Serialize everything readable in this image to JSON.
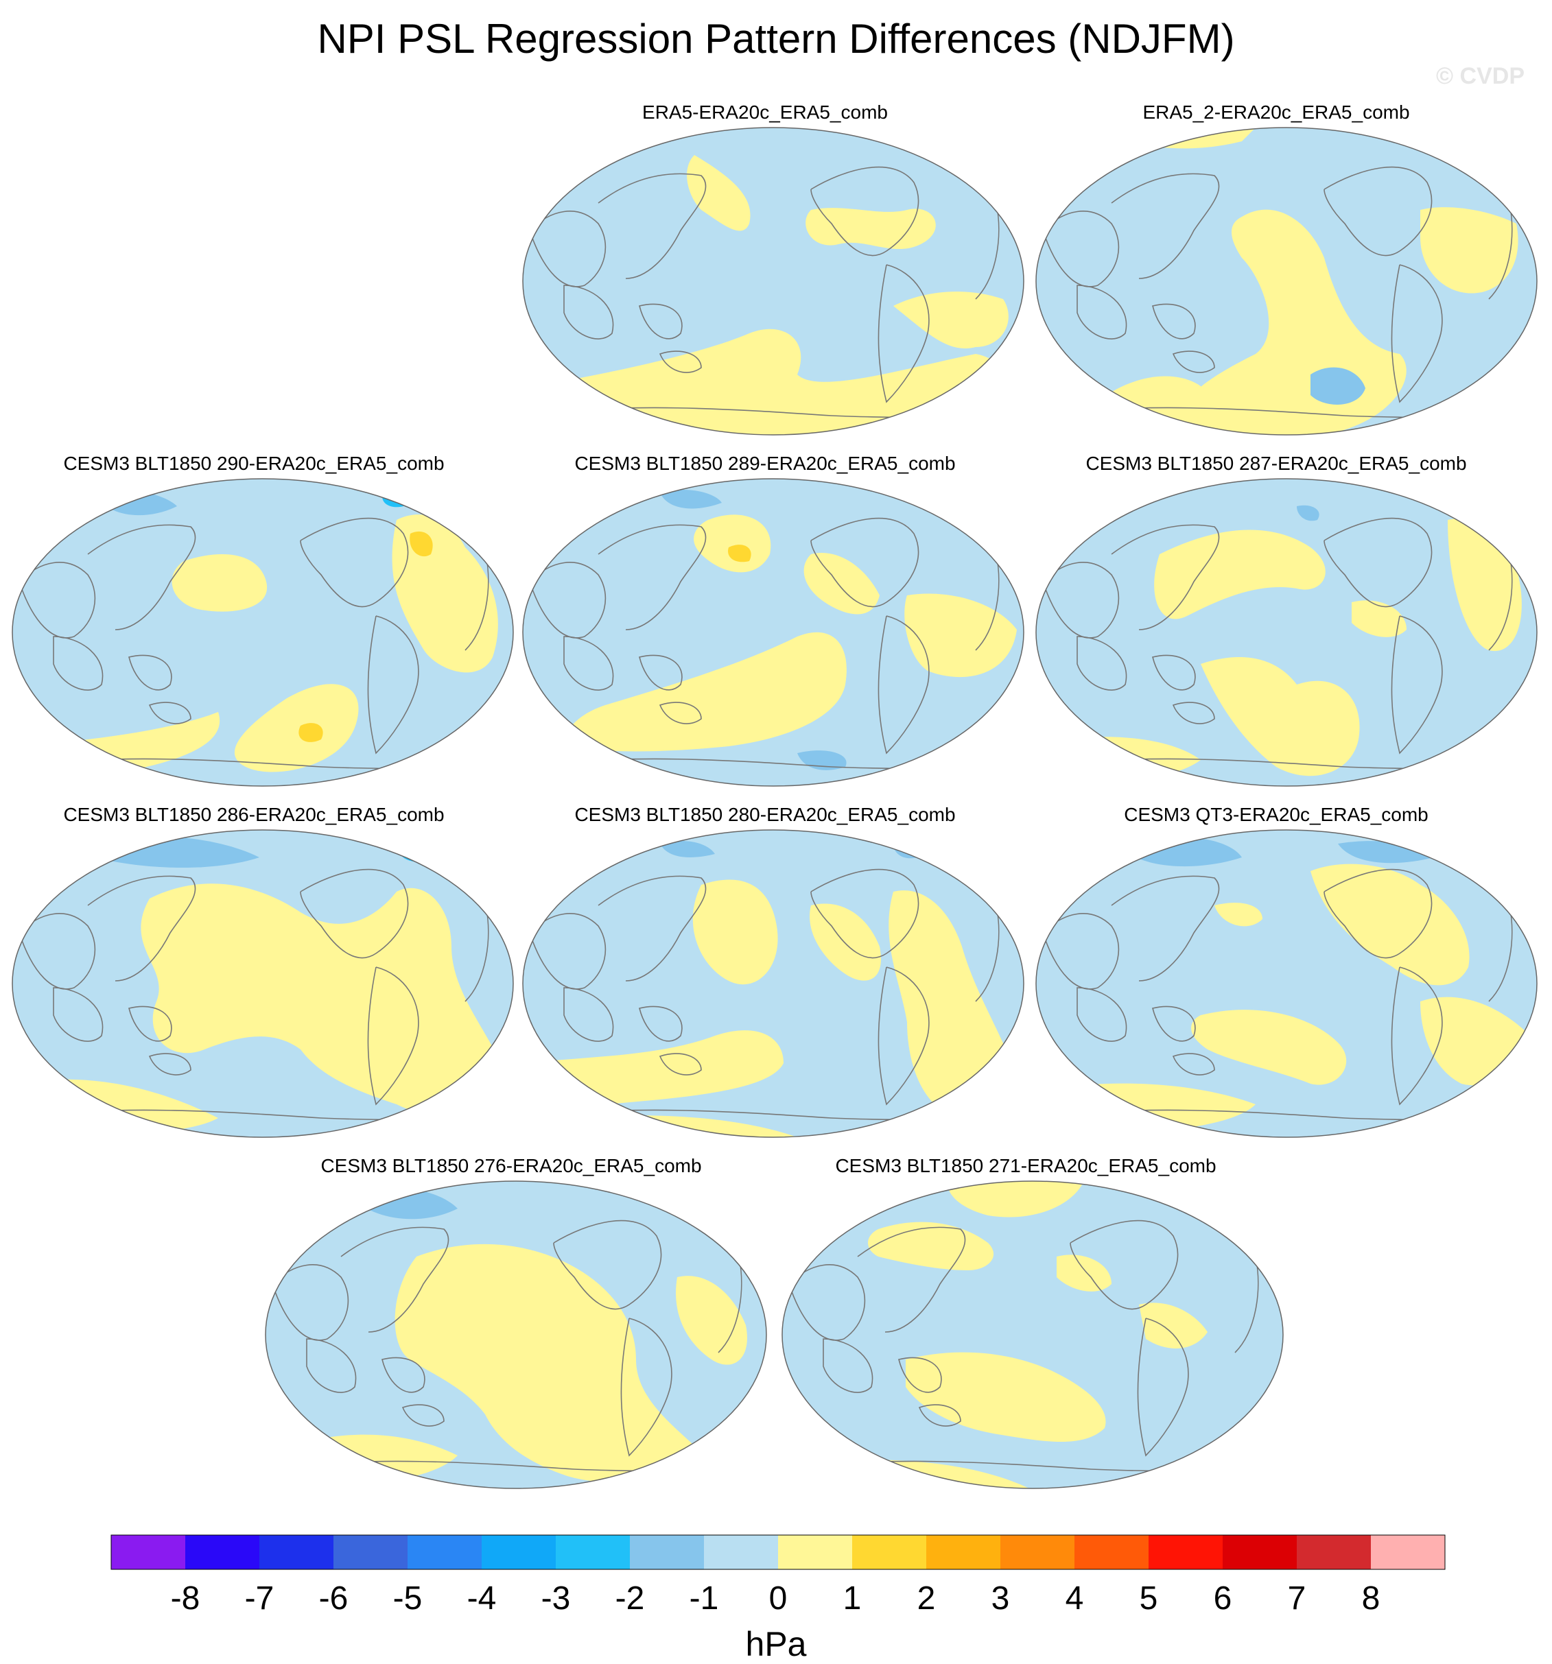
{
  "title": "NPI PSL Regression Pattern Differences (NDJFM)",
  "watermark": "© CVDP",
  "colors": {
    "ocean": "#b9dff2",
    "land_line": "#777777",
    "pos1": "#fff797",
    "pos2": "#ffd831",
    "neg2": "#86c5ec",
    "neg3": "#21c0f8"
  },
  "panels": [
    {
      "id": "p1",
      "title": "ERA5-ERA20c_ERA5_comb"
    },
    {
      "id": "p2",
      "title": "ERA5_2-ERA20c_ERA5_comb"
    },
    {
      "id": "p3",
      "title": "CESM3 BLT1850 290-ERA20c_ERA5_comb"
    },
    {
      "id": "p4",
      "title": "CESM3 BLT1850 289-ERA20c_ERA5_comb"
    },
    {
      "id": "p5",
      "title": "CESM3 BLT1850 287-ERA20c_ERA5_comb"
    },
    {
      "id": "p6",
      "title": "CESM3 BLT1850 286-ERA20c_ERA5_comb"
    },
    {
      "id": "p7",
      "title": "CESM3 BLT1850 280-ERA20c_ERA5_comb"
    },
    {
      "id": "p8",
      "title": "CESM3 QT3-ERA20c_ERA5_comb"
    },
    {
      "id": "p9",
      "title": "CESM3 BLT1850 276-ERA20c_ERA5_comb"
    },
    {
      "id": "p10",
      "title": "CESM3 BLT1850 271-ERA20c_ERA5_comb"
    }
  ],
  "chart_data": {
    "type": "heatmap",
    "title": "NPI PSL Regression Pattern Differences (NDJFM)",
    "projection": "Robinson-like global (centered on Pacific)",
    "units": "hPa",
    "colorbar": {
      "labels": [
        "-8",
        "-7",
        "-6",
        "-5",
        "-4",
        "-3",
        "-2",
        "-1",
        "0",
        "1",
        "2",
        "3",
        "4",
        "5",
        "6",
        "7",
        "8"
      ],
      "colors": [
        "#8a1bf0",
        "#2a08f8",
        "#1d30ec",
        "#3a66dc",
        "#2a86f4",
        "#10a8f8",
        "#21c0f8",
        "#86c5ec",
        "#b9dff2",
        "#fff797",
        "#ffd831",
        "#ffb10e",
        "#ff8a0a",
        "#ff5a08",
        "#ff1405",
        "#dc0004",
        "#d32a2e",
        "#ffb0b0"
      ]
    },
    "dominant_range": [
      -3,
      2
    ]
  }
}
